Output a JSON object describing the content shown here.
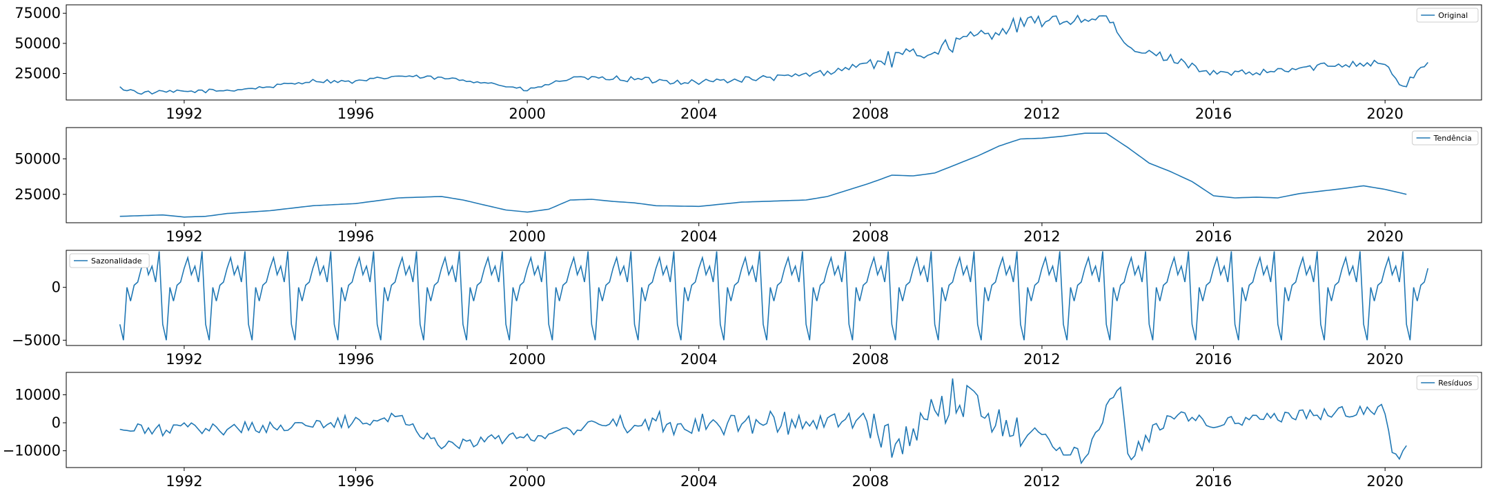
{
  "chart_data": [
    {
      "type": "line",
      "series": [
        {
          "name": "Original"
        }
      ],
      "legend": "top-right",
      "color": "#1f77b4",
      "xlim": [
        1989.25,
        2022.25
      ],
      "ylim": [
        3000,
        82000
      ],
      "x_ticks": [
        1992,
        1996,
        2000,
        2004,
        2008,
        2012,
        2016,
        2020
      ],
      "y_ticks": [
        25000,
        50000,
        75000
      ],
      "x_start": 1990.5,
      "x_end": 2021.0,
      "anchors": [
        [
          1990.5,
          13000
        ],
        [
          1991,
          9000
        ],
        [
          1992,
          10000
        ],
        [
          1993,
          11000
        ],
        [
          1994,
          14000
        ],
        [
          1995,
          19000
        ],
        [
          1996,
          18000
        ],
        [
          1997,
          23000
        ],
        [
          1998,
          21000
        ],
        [
          1999,
          18000
        ],
        [
          2000,
          11000
        ],
        [
          2001,
          21000
        ],
        [
          2002,
          21000
        ],
        [
          2003,
          19000
        ],
        [
          2004,
          18000
        ],
        [
          2005,
          20000
        ],
        [
          2006,
          22000
        ],
        [
          2007,
          26000
        ],
        [
          2008,
          34000
        ],
        [
          2009,
          40000
        ],
        [
          2010,
          50000
        ],
        [
          2011,
          62000
        ],
        [
          2012,
          68000
        ],
        [
          2013,
          70000
        ],
        [
          2013.5,
          72000
        ],
        [
          2014,
          45000
        ],
        [
          2015,
          38000
        ],
        [
          2016,
          25000
        ],
        [
          2017,
          25000
        ],
        [
          2018,
          29000
        ],
        [
          2019,
          33000
        ],
        [
          2020,
          34000
        ],
        [
          2020.4,
          12000
        ],
        [
          2021,
          36000
        ]
      ],
      "noise": [
        1500,
        1500,
        2500,
        7000,
        4500,
        3000
      ]
    },
    {
      "type": "line",
      "series": [
        {
          "name": "Tendência"
        }
      ],
      "legend": "top-right",
      "color": "#1f77b4",
      "xlim": [
        1989.25,
        2022.25
      ],
      "ylim": [
        5000,
        72000
      ],
      "x_ticks": [
        1992,
        1996,
        2000,
        2004,
        2008,
        2012,
        2016,
        2020
      ],
      "y_ticks": [
        25000,
        50000
      ],
      "x_start": 1990.5,
      "x_end": 2020.5,
      "anchors": [
        [
          1990.5,
          9500
        ],
        [
          1991,
          10000
        ],
        [
          1991.5,
          10500
        ],
        [
          1992,
          9000
        ],
        [
          1992.5,
          9500
        ],
        [
          1993,
          11500
        ],
        [
          1994,
          13500
        ],
        [
          1995,
          17000
        ],
        [
          1996,
          18500
        ],
        [
          1997,
          22500
        ],
        [
          1998,
          23500
        ],
        [
          1998.5,
          21000
        ],
        [
          1999,
          17500
        ],
        [
          1999.5,
          14000
        ],
        [
          2000,
          12500
        ],
        [
          2000.5,
          14500
        ],
        [
          2001,
          21000
        ],
        [
          2001.5,
          21500
        ],
        [
          2002,
          20000
        ],
        [
          2002.5,
          19000
        ],
        [
          2003,
          17000
        ],
        [
          2004,
          16500
        ],
        [
          2005,
          19500
        ],
        [
          2006,
          20500
        ],
        [
          2006.5,
          21000
        ],
        [
          2007,
          23500
        ],
        [
          2008,
          33000
        ],
        [
          2008.5,
          38500
        ],
        [
          2009,
          38000
        ],
        [
          2009.5,
          40000
        ],
        [
          2010,
          46000
        ],
        [
          2010.5,
          52000
        ],
        [
          2011,
          59000
        ],
        [
          2011.5,
          64000
        ],
        [
          2012,
          64500
        ],
        [
          2012.5,
          66000
        ],
        [
          2013,
          68000
        ],
        [
          2013.5,
          68000
        ],
        [
          2014,
          58000
        ],
        [
          2014.5,
          47000
        ],
        [
          2015,
          41000
        ],
        [
          2015.5,
          34000
        ],
        [
          2016,
          24000
        ],
        [
          2016.5,
          22500
        ],
        [
          2017,
          23000
        ],
        [
          2017.5,
          22500
        ],
        [
          2018,
          25500
        ],
        [
          2019,
          29000
        ],
        [
          2019.5,
          31000
        ],
        [
          2020,
          28500
        ],
        [
          2020.5,
          25000
        ]
      ],
      "noise": []
    },
    {
      "type": "line",
      "series": [
        {
          "name": "Sazonalidade"
        }
      ],
      "legend": "top-left",
      "color": "#1f77b4",
      "xlim": [
        1989.25,
        2022.25
      ],
      "ylim": [
        -5500,
        3500
      ],
      "x_ticks": [
        1992,
        1996,
        2000,
        2004,
        2008,
        2012,
        2016,
        2020
      ],
      "y_ticks": [
        0,
        -5000
      ],
      "x_start": 1990.5,
      "x_end": 2021.0,
      "monthly_pattern": [
        -3500,
        -5000,
        0,
        -1300,
        200,
        500,
        1800,
        2800,
        1200,
        2000,
        500,
        3400
      ]
    },
    {
      "type": "line",
      "series": [
        {
          "name": "Resíduos"
        }
      ],
      "legend": "top-right",
      "color": "#1f77b4",
      "xlim": [
        1989.25,
        2022.25
      ],
      "ylim": [
        -16000,
        18000
      ],
      "x_ticks": [
        1992,
        1996,
        2000,
        2004,
        2008,
        2012,
        2016,
        2020
      ],
      "y_ticks": [
        10000,
        0,
        -10000
      ],
      "x_start": 1990.5,
      "x_end": 2020.5,
      "anchors": [
        [
          1990.5,
          -3000
        ],
        [
          1995,
          -1000
        ],
        [
          1997,
          2000
        ],
        [
          1998,
          -8000
        ],
        [
          2000,
          -5000
        ],
        [
          2002,
          0
        ],
        [
          2004,
          0
        ],
        [
          2008,
          0
        ],
        [
          2008.5,
          -9000
        ],
        [
          2010,
          10000
        ],
        [
          2012,
          -6000
        ],
        [
          2013,
          -12000
        ],
        [
          2013.8,
          16000
        ],
        [
          2014,
          -12000
        ],
        [
          2015,
          3000
        ],
        [
          2016,
          0
        ],
        [
          2020,
          5000
        ],
        [
          2020.2,
          -14000
        ],
        [
          2020.5,
          -8000
        ]
      ],
      "noise": [
        2500,
        2000,
        4500,
        7000,
        3000,
        2000
      ]
    }
  ]
}
